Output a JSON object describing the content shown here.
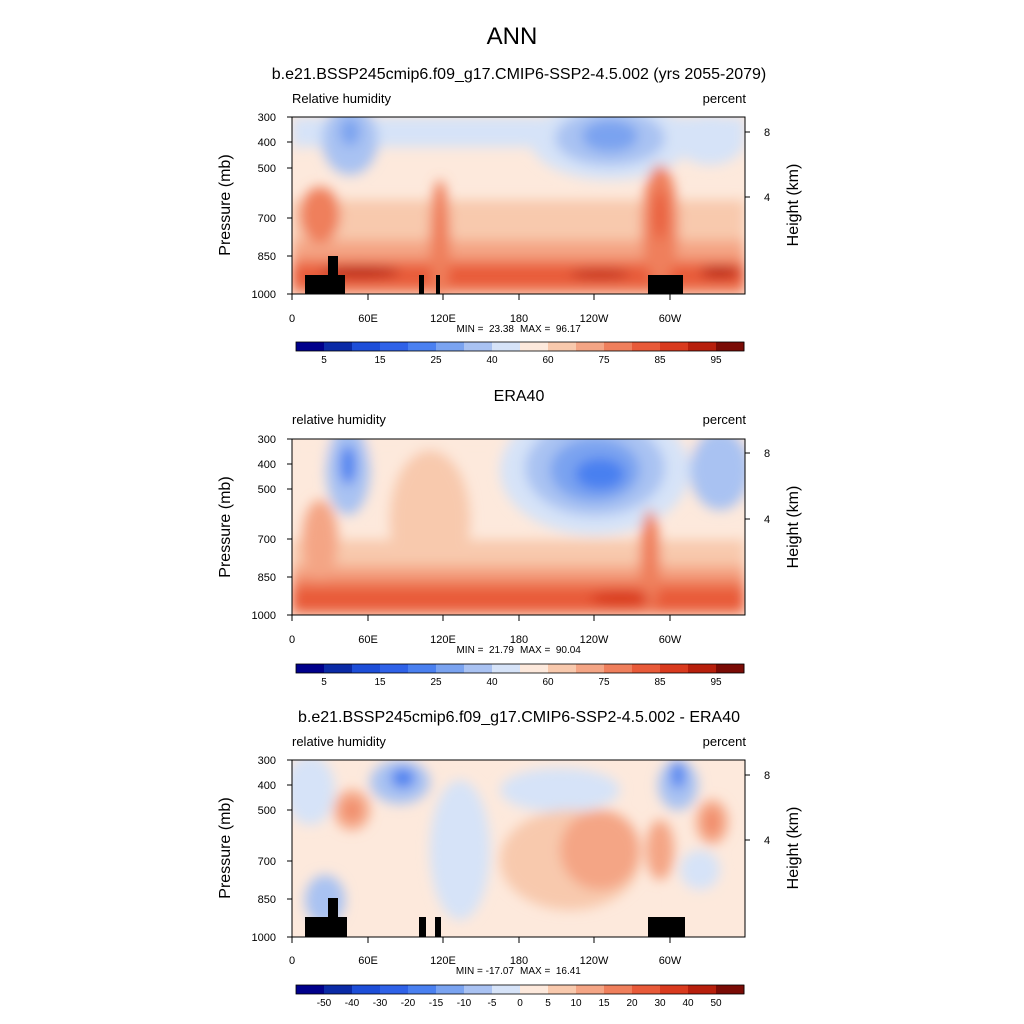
{
  "main_title": "ANN",
  "chart_data": [
    {
      "type": "heatmap",
      "title": "b.e21.BSSP245cmip6.f09_g17.CMIP6-SSP2-4.5.002 (yrs 2055-2079)",
      "variable": "Relative humidity",
      "units": "percent",
      "ylabel": "Pressure (mb)",
      "y2label": "Height (km)",
      "yticks": [
        "300",
        "400",
        "500",
        "700",
        "850",
        "1000"
      ],
      "y2ticks": [
        "8",
        "4"
      ],
      "xticks": [
        "0",
        "60E",
        "120E",
        "180",
        "120W",
        "60W"
      ],
      "min_label": "MIN =  23.38",
      "max_label": "MAX =  96.17",
      "min": 23.38,
      "max": 96.17,
      "colorbar_labels": [
        "5",
        "15",
        "25",
        "40",
        "60",
        "75",
        "85",
        "95"
      ],
      "colorbar_colors": [
        "#00008b",
        "#0a2aa6",
        "#1d4ed8",
        "#2f62e8",
        "#4a80f0",
        "#7aa3f0",
        "#a9c2f2",
        "#d6e3f8",
        "#fde9dc",
        "#f8c9ad",
        "#f4a585",
        "#ef7f5c",
        "#e85a39",
        "#d93a1e",
        "#b71f0c",
        "#7a0b05"
      ],
      "ylim": [
        1000,
        300
      ],
      "xlim": [
        0,
        360
      ],
      "grid": false
    },
    {
      "type": "heatmap",
      "title": "ERA40",
      "variable": "relative humidity",
      "units": "percent",
      "ylabel": "Pressure (mb)",
      "y2label": "Height (km)",
      "yticks": [
        "300",
        "400",
        "500",
        "700",
        "850",
        "1000"
      ],
      "y2ticks": [
        "8",
        "4"
      ],
      "xticks": [
        "0",
        "60E",
        "120E",
        "180",
        "120W",
        "60W"
      ],
      "min_label": "MIN =  21.79",
      "max_label": "MAX =  90.04",
      "min": 21.79,
      "max": 90.04,
      "colorbar_labels": [
        "5",
        "15",
        "25",
        "40",
        "60",
        "75",
        "85",
        "95"
      ],
      "colorbar_colors": [
        "#00008b",
        "#0a2aa6",
        "#1d4ed8",
        "#2f62e8",
        "#4a80f0",
        "#7aa3f0",
        "#a9c2f2",
        "#d6e3f8",
        "#fde9dc",
        "#f8c9ad",
        "#f4a585",
        "#ef7f5c",
        "#e85a39",
        "#d93a1e",
        "#b71f0c",
        "#7a0b05"
      ],
      "ylim": [
        1000,
        300
      ],
      "xlim": [
        0,
        360
      ],
      "grid": false
    },
    {
      "type": "heatmap",
      "title": "b.e21.BSSP245cmip6.f09_g17.CMIP6-SSP2-4.5.002 - ERA40",
      "variable": "relative humidity",
      "units": "percent",
      "ylabel": "Pressure (mb)",
      "y2label": "Height (km)",
      "yticks": [
        "300",
        "400",
        "500",
        "700",
        "850",
        "1000"
      ],
      "y2ticks": [
        "8",
        "4"
      ],
      "xticks": [
        "0",
        "60E",
        "120E",
        "180",
        "120W",
        "60W"
      ],
      "min_label": "MIN = -17.07",
      "max_label": "MAX =  16.41",
      "min": -17.07,
      "max": 16.41,
      "colorbar_labels": [
        "-50",
        "-40",
        "-30",
        "-20",
        "-15",
        "-10",
        "-5",
        "0",
        "5",
        "10",
        "15",
        "20",
        "30",
        "40",
        "50"
      ],
      "colorbar_colors": [
        "#00008b",
        "#0a2aa6",
        "#1d4ed8",
        "#2f62e8",
        "#4a80f0",
        "#7aa3f0",
        "#a9c2f2",
        "#d6e3f8",
        "#fde9dc",
        "#f8c9ad",
        "#f4a585",
        "#ef7f5c",
        "#e85a39",
        "#d93a1e",
        "#b71f0c",
        "#7a0b05"
      ],
      "ylim": [
        1000,
        300
      ],
      "xlim": [
        0,
        360
      ],
      "grid": false
    }
  ]
}
